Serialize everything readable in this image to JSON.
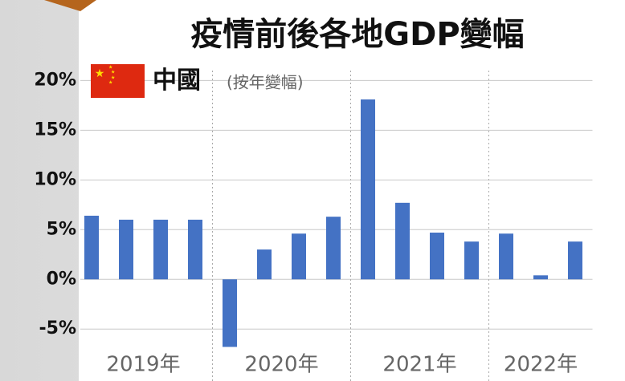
{
  "chart_data": {
    "type": "bar",
    "title": "疫情前後各地GDP變幅",
    "subtitle": "中國",
    "note": "(按年變幅)",
    "categories": [
      null,
      null,
      null,
      null,
      null,
      null,
      null,
      null,
      null,
      null,
      null,
      null,
      null,
      null,
      null
    ],
    "x_group_labels": [
      "2019年",
      "2020年",
      "2021年",
      "2022年"
    ],
    "values": [
      6.4,
      6.0,
      6.0,
      6.0,
      -6.8,
      3.0,
      4.6,
      6.3,
      18.1,
      7.7,
      4.7,
      3.8,
      4.6,
      0.4,
      3.8
    ],
    "color": "#4472c4",
    "ylim": [
      -7,
      21
    ],
    "yticks": [
      {
        "value": -5,
        "label": "-5%"
      },
      {
        "value": 0,
        "label": "0%"
      },
      {
        "value": 5,
        "label": "5%"
      },
      {
        "value": 10,
        "label": "10%"
      },
      {
        "value": 15,
        "label": "15%"
      },
      {
        "value": 20,
        "label": "20%"
      }
    ],
    "grid": true
  }
}
